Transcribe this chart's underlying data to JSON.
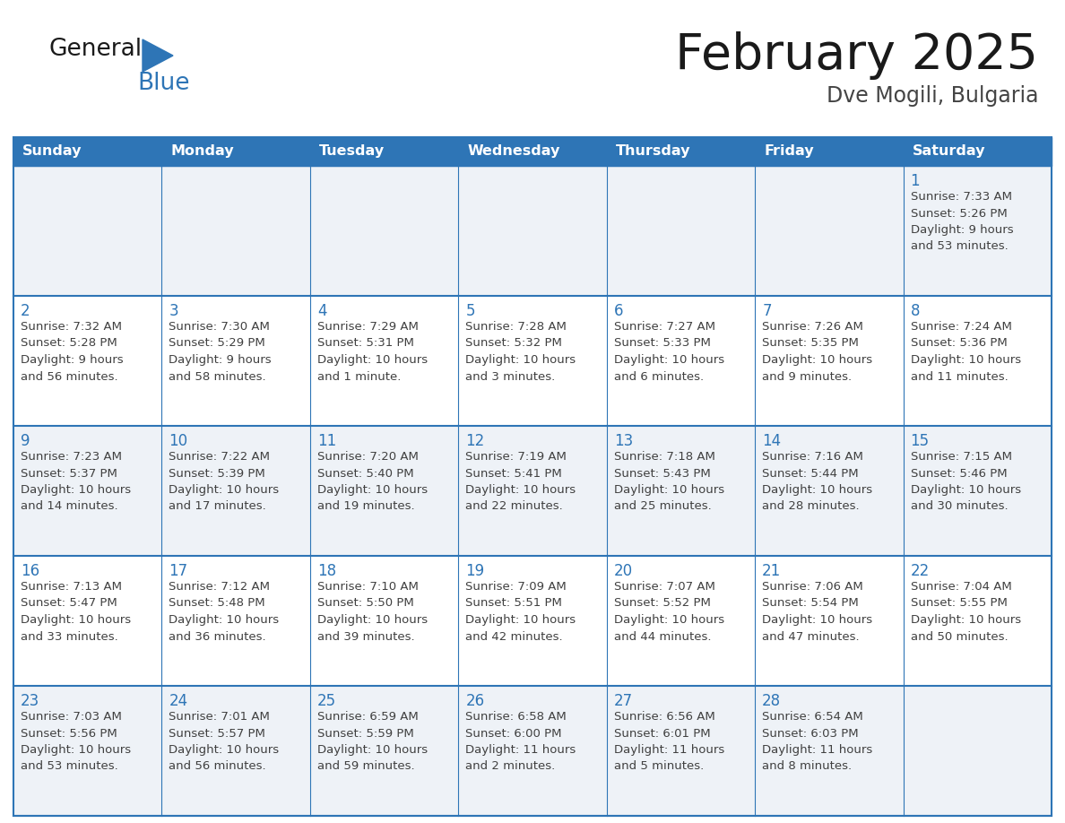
{
  "title": "February 2025",
  "subtitle": "Dve Mogili, Bulgaria",
  "header_color": "#2E75B6",
  "header_text_color": "#FFFFFF",
  "cell_text_color": "#404040",
  "day_num_color": "#2E75B6",
  "grid_color": "#2E75B6",
  "odd_row_color": "#EEF2F7",
  "even_row_color": "#FFFFFF",
  "background_color": "#FFFFFF",
  "days_of_week": [
    "Sunday",
    "Monday",
    "Tuesday",
    "Wednesday",
    "Thursday",
    "Friday",
    "Saturday"
  ],
  "weeks": [
    [
      {
        "day": null,
        "info": null
      },
      {
        "day": null,
        "info": null
      },
      {
        "day": null,
        "info": null
      },
      {
        "day": null,
        "info": null
      },
      {
        "day": null,
        "info": null
      },
      {
        "day": null,
        "info": null
      },
      {
        "day": "1",
        "sunrise": "Sunrise: 7:33 AM",
        "sunset": "Sunset: 5:26 PM",
        "daylight1": "Daylight: 9 hours",
        "daylight2": "and 53 minutes."
      }
    ],
    [
      {
        "day": "2",
        "sunrise": "Sunrise: 7:32 AM",
        "sunset": "Sunset: 5:28 PM",
        "daylight1": "Daylight: 9 hours",
        "daylight2": "and 56 minutes."
      },
      {
        "day": "3",
        "sunrise": "Sunrise: 7:30 AM",
        "sunset": "Sunset: 5:29 PM",
        "daylight1": "Daylight: 9 hours",
        "daylight2": "and 58 minutes."
      },
      {
        "day": "4",
        "sunrise": "Sunrise: 7:29 AM",
        "sunset": "Sunset: 5:31 PM",
        "daylight1": "Daylight: 10 hours",
        "daylight2": "and 1 minute."
      },
      {
        "day": "5",
        "sunrise": "Sunrise: 7:28 AM",
        "sunset": "Sunset: 5:32 PM",
        "daylight1": "Daylight: 10 hours",
        "daylight2": "and 3 minutes."
      },
      {
        "day": "6",
        "sunrise": "Sunrise: 7:27 AM",
        "sunset": "Sunset: 5:33 PM",
        "daylight1": "Daylight: 10 hours",
        "daylight2": "and 6 minutes."
      },
      {
        "day": "7",
        "sunrise": "Sunrise: 7:26 AM",
        "sunset": "Sunset: 5:35 PM",
        "daylight1": "Daylight: 10 hours",
        "daylight2": "and 9 minutes."
      },
      {
        "day": "8",
        "sunrise": "Sunrise: 7:24 AM",
        "sunset": "Sunset: 5:36 PM",
        "daylight1": "Daylight: 10 hours",
        "daylight2": "and 11 minutes."
      }
    ],
    [
      {
        "day": "9",
        "sunrise": "Sunrise: 7:23 AM",
        "sunset": "Sunset: 5:37 PM",
        "daylight1": "Daylight: 10 hours",
        "daylight2": "and 14 minutes."
      },
      {
        "day": "10",
        "sunrise": "Sunrise: 7:22 AM",
        "sunset": "Sunset: 5:39 PM",
        "daylight1": "Daylight: 10 hours",
        "daylight2": "and 17 minutes."
      },
      {
        "day": "11",
        "sunrise": "Sunrise: 7:20 AM",
        "sunset": "Sunset: 5:40 PM",
        "daylight1": "Daylight: 10 hours",
        "daylight2": "and 19 minutes."
      },
      {
        "day": "12",
        "sunrise": "Sunrise: 7:19 AM",
        "sunset": "Sunset: 5:41 PM",
        "daylight1": "Daylight: 10 hours",
        "daylight2": "and 22 minutes."
      },
      {
        "day": "13",
        "sunrise": "Sunrise: 7:18 AM",
        "sunset": "Sunset: 5:43 PM",
        "daylight1": "Daylight: 10 hours",
        "daylight2": "and 25 minutes."
      },
      {
        "day": "14",
        "sunrise": "Sunrise: 7:16 AM",
        "sunset": "Sunset: 5:44 PM",
        "daylight1": "Daylight: 10 hours",
        "daylight2": "and 28 minutes."
      },
      {
        "day": "15",
        "sunrise": "Sunrise: 7:15 AM",
        "sunset": "Sunset: 5:46 PM",
        "daylight1": "Daylight: 10 hours",
        "daylight2": "and 30 minutes."
      }
    ],
    [
      {
        "day": "16",
        "sunrise": "Sunrise: 7:13 AM",
        "sunset": "Sunset: 5:47 PM",
        "daylight1": "Daylight: 10 hours",
        "daylight2": "and 33 minutes."
      },
      {
        "day": "17",
        "sunrise": "Sunrise: 7:12 AM",
        "sunset": "Sunset: 5:48 PM",
        "daylight1": "Daylight: 10 hours",
        "daylight2": "and 36 minutes."
      },
      {
        "day": "18",
        "sunrise": "Sunrise: 7:10 AM",
        "sunset": "Sunset: 5:50 PM",
        "daylight1": "Daylight: 10 hours",
        "daylight2": "and 39 minutes."
      },
      {
        "day": "19",
        "sunrise": "Sunrise: 7:09 AM",
        "sunset": "Sunset: 5:51 PM",
        "daylight1": "Daylight: 10 hours",
        "daylight2": "and 42 minutes."
      },
      {
        "day": "20",
        "sunrise": "Sunrise: 7:07 AM",
        "sunset": "Sunset: 5:52 PM",
        "daylight1": "Daylight: 10 hours",
        "daylight2": "and 44 minutes."
      },
      {
        "day": "21",
        "sunrise": "Sunrise: 7:06 AM",
        "sunset": "Sunset: 5:54 PM",
        "daylight1": "Daylight: 10 hours",
        "daylight2": "and 47 minutes."
      },
      {
        "day": "22",
        "sunrise": "Sunrise: 7:04 AM",
        "sunset": "Sunset: 5:55 PM",
        "daylight1": "Daylight: 10 hours",
        "daylight2": "and 50 minutes."
      }
    ],
    [
      {
        "day": "23",
        "sunrise": "Sunrise: 7:03 AM",
        "sunset": "Sunset: 5:56 PM",
        "daylight1": "Daylight: 10 hours",
        "daylight2": "and 53 minutes."
      },
      {
        "day": "24",
        "sunrise": "Sunrise: 7:01 AM",
        "sunset": "Sunset: 5:57 PM",
        "daylight1": "Daylight: 10 hours",
        "daylight2": "and 56 minutes."
      },
      {
        "day": "25",
        "sunrise": "Sunrise: 6:59 AM",
        "sunset": "Sunset: 5:59 PM",
        "daylight1": "Daylight: 10 hours",
        "daylight2": "and 59 minutes."
      },
      {
        "day": "26",
        "sunrise": "Sunrise: 6:58 AM",
        "sunset": "Sunset: 6:00 PM",
        "daylight1": "Daylight: 11 hours",
        "daylight2": "and 2 minutes."
      },
      {
        "day": "27",
        "sunrise": "Sunrise: 6:56 AM",
        "sunset": "Sunset: 6:01 PM",
        "daylight1": "Daylight: 11 hours",
        "daylight2": "and 5 minutes."
      },
      {
        "day": "28",
        "sunrise": "Sunrise: 6:54 AM",
        "sunset": "Sunset: 6:03 PM",
        "daylight1": "Daylight: 11 hours",
        "daylight2": "and 8 minutes."
      },
      {
        "day": null,
        "info": null
      }
    ]
  ]
}
